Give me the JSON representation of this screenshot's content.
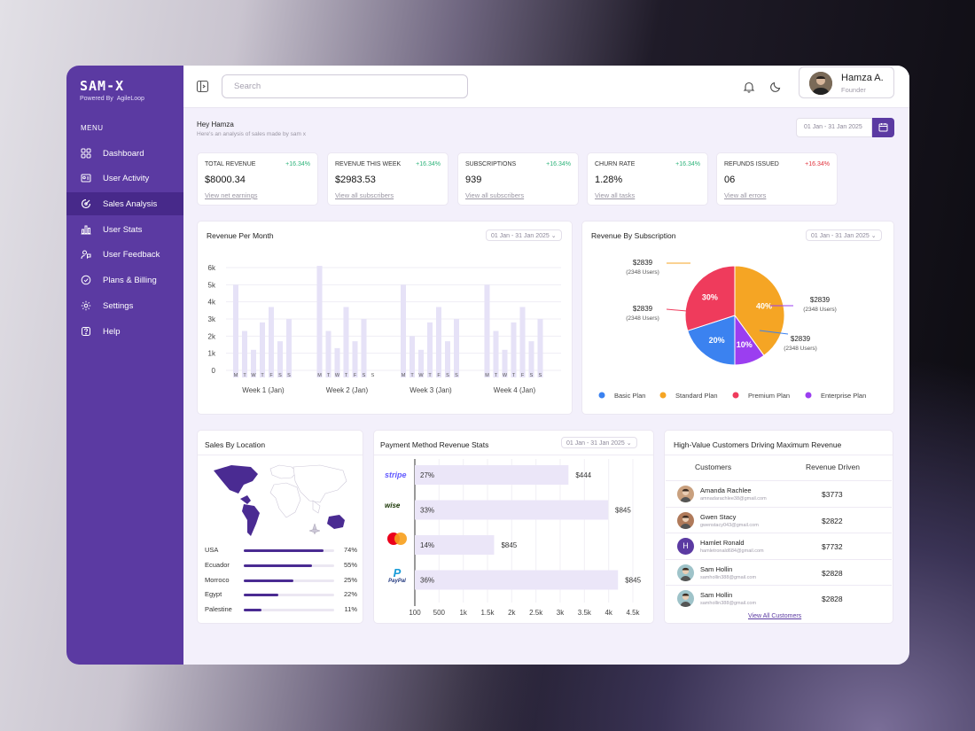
{
  "brand": {
    "name": "SAM-X",
    "powered_by": "Powered By",
    "partner": "AgileLoop"
  },
  "menu": {
    "title": "MENU",
    "items": [
      {
        "label": "Dashboard",
        "icon": "grid-icon"
      },
      {
        "label": "User Activity",
        "icon": "id-card-icon"
      },
      {
        "label": "Sales Analysis",
        "icon": "chart-circle-icon",
        "active": true
      },
      {
        "label": "User Stats",
        "icon": "bar-chart-icon"
      },
      {
        "label": "User Feedback",
        "icon": "feedback-icon"
      },
      {
        "label": "Plans & Billing",
        "icon": "billing-icon"
      },
      {
        "label": "Settings",
        "icon": "gear-icon"
      },
      {
        "label": "Help",
        "icon": "help-icon"
      }
    ]
  },
  "header": {
    "search_placeholder": "Search",
    "user_name": "Hamza A.",
    "user_role": "Founder"
  },
  "greeting": {
    "title": "Hey Hamza",
    "subtitle": "Here's an analysis of sales made by sam x",
    "date_range": "01 Jan - 31 Jan 2025"
  },
  "stats": [
    {
      "label": "TOTAL REVENUE",
      "value": "$8000.34",
      "delta": "+16.34%",
      "link": "View net earnings",
      "color": "#2db37a"
    },
    {
      "label": "REVENUE THIS WEEK",
      "value": "$2983.53",
      "delta": "+16.34%",
      "link": "View all subscribers",
      "color": "#2db37a"
    },
    {
      "label": "SUBSCRIPTIONS",
      "value": "939",
      "delta": "+16.34%",
      "link": "View all subscribers",
      "color": "#2db37a"
    },
    {
      "label": "CHURN RATE",
      "value": "1.28%",
      "delta": "+16.34%",
      "link": "View all tasks",
      "color": "#2db37a"
    },
    {
      "label": "REFUNDS ISSUED",
      "value": "06",
      "delta": "+16.34%",
      "link": "View all errors",
      "color": "#e0323c"
    }
  ],
  "revenue_month": {
    "title": "Revenue Per Month",
    "date": "01 Jan - 31 Jan 2025 ⌄"
  },
  "subscription": {
    "title": "Revenue By Subscription",
    "date": "01 Jan - 31 Jan 2025 ⌄",
    "callouts": [
      {
        "amount": "$2839",
        "users": "(2348 Users)"
      },
      {
        "amount": "$2839",
        "users": "(2348 Users)"
      },
      {
        "amount": "$2839",
        "users": "(2348 Users)"
      },
      {
        "amount": "$2839",
        "users": "(2348 Users)"
      }
    ]
  },
  "location": {
    "title": "Sales By Location",
    "rows": [
      {
        "name": "USA",
        "pct": "74%",
        "value": 0.88
      },
      {
        "name": "Ecuador",
        "pct": "55%",
        "value": 0.75
      },
      {
        "name": "Morroco",
        "pct": "25%",
        "value": 0.55
      },
      {
        "name": "Egypt",
        "pct": "22%",
        "value": 0.38
      },
      {
        "name": "Palestine",
        "pct": "11%",
        "value": 0.2
      }
    ]
  },
  "payment": {
    "title": "Payment Method Revenue Stats",
    "date": "01 Jan - 31 Jan 2025 ⌄",
    "methods": [
      {
        "name": "stripe",
        "pct": "27%",
        "amount": "$444"
      },
      {
        "name": "wise",
        "pct": "33%",
        "amount": "$845"
      },
      {
        "name": "mastercard",
        "pct": "14%",
        "amount": "$845"
      },
      {
        "name": "PayPal",
        "pct": "36%",
        "amount": "$845"
      }
    ],
    "ticks": [
      "100",
      "500",
      "1k",
      "1.5k",
      "2k",
      "2.5k",
      "3k",
      "3.5k",
      "4k",
      "4.5k"
    ]
  },
  "customers": {
    "title": "High-Value Customers Driving Maximum Revenue",
    "col1": "Customers",
    "col2": "Revenue Driven",
    "view_all": "View All Customers",
    "rows": [
      {
        "name": "Amanda Rachlee",
        "email": "amnadarachlee38@gmail.com",
        "revenue": "$3773",
        "initial": ""
      },
      {
        "name": "Gwen Stacy",
        "email": "gwenstacy043@gmail.com",
        "revenue": "$2822",
        "initial": ""
      },
      {
        "name": "Hamlet Ronald",
        "email": "hamletronald684@gmail.com",
        "revenue": "$7732",
        "initial": "H"
      },
      {
        "name": "Sam Hollin",
        "email": "samhollin388@gmail.com",
        "revenue": "$2828",
        "initial": ""
      },
      {
        "name": "Sam Hollin",
        "email": "samhollin388@gmail.com",
        "revenue": "$2828",
        "initial": ""
      }
    ]
  },
  "chart_data": [
    {
      "type": "bar",
      "title": "Revenue Per Month",
      "ylim": [
        0,
        6000
      ],
      "yticks": [
        "0",
        "1k",
        "2k",
        "3k",
        "4k",
        "5k",
        "6k"
      ],
      "categories": [
        "Week 1 (Jan)",
        "Week 2 (Jan)",
        "Week 3 (Jan)",
        "Week 4 (Jan)"
      ],
      "day_labels": [
        "M",
        "T",
        "W",
        "T",
        "F",
        "S",
        "S"
      ],
      "values": [
        [
          5000,
          2300,
          1200,
          2800,
          3700,
          1700,
          3000
        ],
        [
          6100,
          2300,
          1300,
          3700,
          1700,
          3000,
          0
        ],
        [
          5000,
          2000,
          1200,
          2800,
          3700,
          1700,
          3000
        ],
        [
          5000,
          2300,
          1200,
          2800,
          3700,
          1700,
          3000
        ]
      ]
    },
    {
      "type": "pie",
      "title": "Revenue By Subscription",
      "legend_position": "bottom",
      "series": [
        {
          "name": "Standard Plan",
          "value": 40,
          "label": "40%",
          "color": "#f5a524"
        },
        {
          "name": "Enterprise Plan",
          "value": 10,
          "label": "10%",
          "color": "#9b3ef0"
        },
        {
          "name": "Basic Plan",
          "value": 20,
          "label": "20%",
          "color": "#3b82f0"
        },
        {
          "name": "Premium Plan",
          "value": 30,
          "label": "30%",
          "color": "#ef3b5c"
        }
      ],
      "legend": [
        {
          "name": "Basic Plan",
          "color": "#3b82f0"
        },
        {
          "name": "Standard Plan",
          "color": "#f5a524"
        },
        {
          "name": "Premium Plan",
          "color": "#ef3b5c"
        },
        {
          "name": "Enterprise Plan",
          "color": "#9b3ef0"
        }
      ]
    },
    {
      "type": "bar",
      "orientation": "horizontal",
      "title": "Payment Method Revenue Stats",
      "categories": [
        "stripe",
        "wise",
        "mastercard",
        "PayPal"
      ],
      "values": [
        3200,
        4000,
        1700,
        4200
      ],
      "xlim": [
        100,
        4500
      ]
    }
  ]
}
